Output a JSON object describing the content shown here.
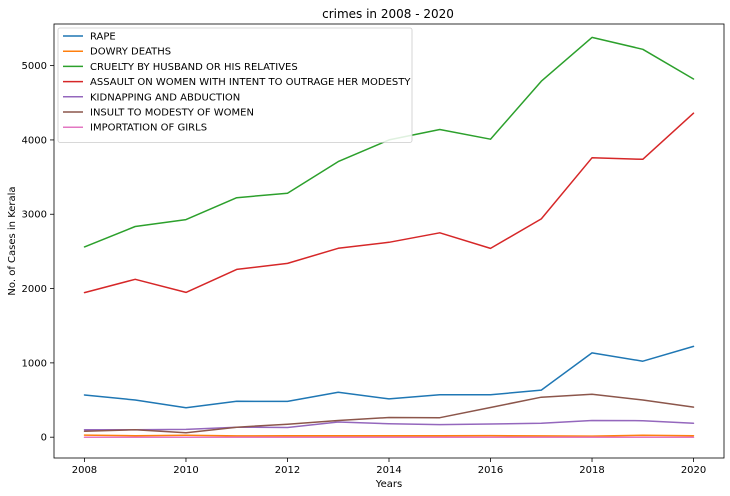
{
  "chart_data": {
    "type": "line",
    "title": "crimes in 2008 - 2020",
    "xlabel": "Years",
    "ylabel": "No. of Cases in Kerala",
    "x": [
      2008,
      2009,
      2010,
      2011,
      2012,
      2013,
      2014,
      2015,
      2016,
      2017,
      2018,
      2019,
      2020
    ],
    "xlim": [
      2007.4,
      2020.6
    ],
    "ylim": [
      -280,
      5560
    ],
    "xticks": [
      2008,
      2010,
      2012,
      2014,
      2016,
      2018,
      2020
    ],
    "yticks": [
      0,
      1000,
      2000,
      3000,
      4000,
      5000
    ],
    "legend_position": "upper-left",
    "grid": false,
    "series": [
      {
        "name": "RAPE",
        "color": "#1f77b4",
        "values": [
          568,
          500,
          396,
          483,
          481,
          606,
          515,
          571,
          571,
          634,
          1134,
          1022,
          1222
        ]
      },
      {
        "name": "DOWRY DEATHS",
        "color": "#ff7f0e",
        "values": [
          28,
          20,
          26,
          18,
          20,
          19,
          19,
          20,
          22,
          18,
          15,
          25,
          20
        ]
      },
      {
        "name": "CRUELTY BY HUSBAND OR HIS RELATIVES",
        "color": "#2ca02c",
        "values": [
          2560,
          2835,
          2928,
          3222,
          3283,
          3709,
          4000,
          4140,
          4010,
          4790,
          5380,
          5220,
          4820
        ]
      },
      {
        "name": "ASSAULT ON WOMEN WITH INTENT TO OUTRAGE HER MODESTY",
        "color": "#d62728",
        "values": [
          1945,
          2125,
          1948,
          2258,
          2338,
          2542,
          2622,
          2750,
          2540,
          2938,
          3760,
          3740,
          4360
        ]
      },
      {
        "name": "KIDNAPPING AND ABDUCTION",
        "color": "#9467bd",
        "values": [
          100,
          100,
          105,
          135,
          130,
          205,
          180,
          170,
          178,
          187,
          225,
          222,
          188
        ]
      },
      {
        "name": "INSULT TO MODESTY OF WOMEN",
        "color": "#8c564b",
        "values": [
          80,
          100,
          60,
          135,
          175,
          225,
          265,
          262,
          400,
          538,
          577,
          500,
          405
        ]
      },
      {
        "name": "IMPORTATION OF GIRLS",
        "color": "#e377c2",
        "values": [
          0,
          0,
          0,
          0,
          0,
          0,
          0,
          0,
          0,
          0,
          0,
          0,
          0
        ]
      }
    ]
  }
}
